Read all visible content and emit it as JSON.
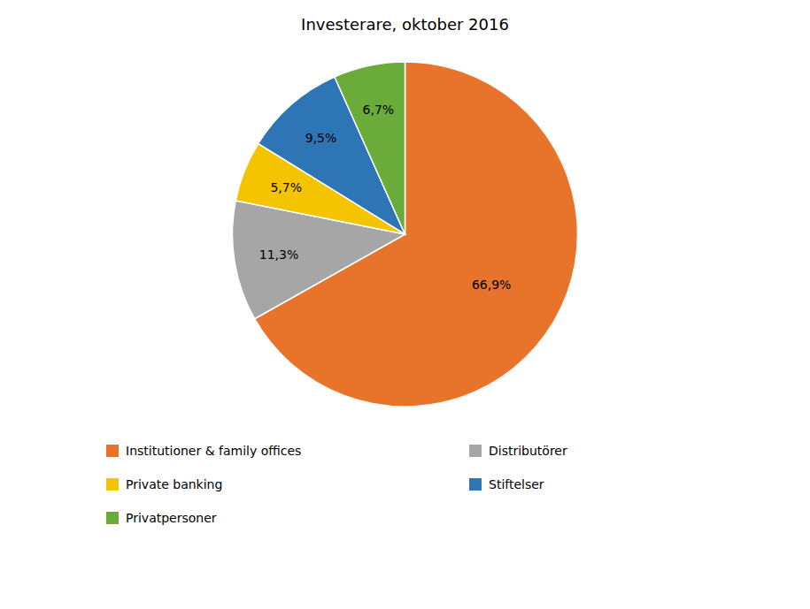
{
  "chart_data": {
    "type": "pie",
    "title": "Investerare, oktober 2016",
    "categories": [
      "Institutioner & family offices",
      "Distributörer",
      "Private banking",
      "Stiftelser",
      "Privatpersoner"
    ],
    "values": [
      66.9,
      11.3,
      5.7,
      9.5,
      6.7
    ],
    "value_labels": [
      "66,9%",
      "11,3%",
      "5,7%",
      "9,5%",
      "6,7%"
    ],
    "colors": [
      "#E8732A",
      "#A6A6A6",
      "#F5C400",
      "#2E75B6",
      "#6AAB3A"
    ],
    "data_labels": true,
    "legend": "bottom"
  }
}
